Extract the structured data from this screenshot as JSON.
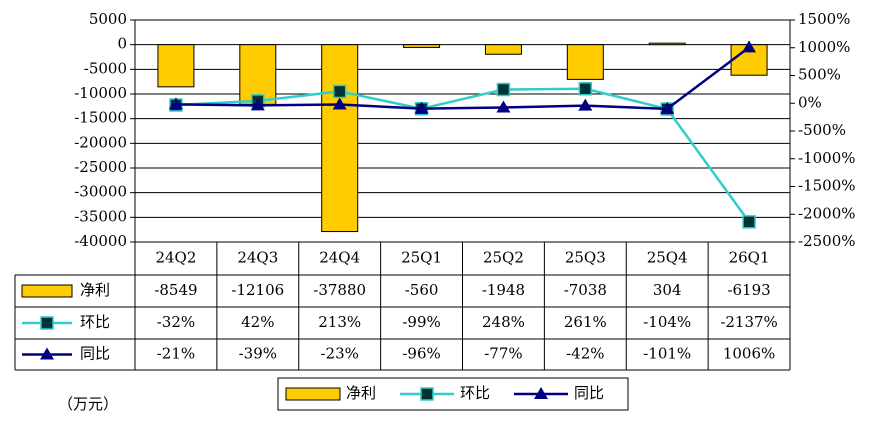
{
  "chart_data": {
    "type": "bar",
    "categories": [
      "24Q2",
      "24Q3",
      "24Q4",
      "25Q1",
      "25Q2",
      "25Q3",
      "25Q4",
      "26Q1"
    ],
    "series": [
      {
        "name": "净利",
        "type": "bar",
        "color": "#ffcc00",
        "values": [
          -8549,
          -12106,
          -37880,
          -560,
          -1948,
          -7038,
          304,
          -6193
        ]
      },
      {
        "name": "环比",
        "type": "line",
        "color": "#33cccc",
        "marker": "square",
        "axis": "y2",
        "values": [
          -32,
          42,
          213,
          -99,
          248,
          261,
          -104,
          -2137
        ],
        "value_labels": [
          "-32%",
          "42%",
          "213%",
          "-99%",
          "248%",
          "261%",
          "-104%",
          "-2137%"
        ]
      },
      {
        "name": "同比",
        "type": "line",
        "color": "#000080",
        "marker": "triangle",
        "axis": "y2",
        "values": [
          -21,
          -39,
          -23,
          -96,
          -77,
          -42,
          -101,
          1006
        ],
        "value_labels": [
          "-21%",
          "-39%",
          "-23%",
          "-96%",
          "-77%",
          "-42%",
          "-101%",
          "1006%"
        ]
      }
    ],
    "ylim": [
      -40000,
      5000
    ],
    "yticks": [
      5000,
      0,
      -5000,
      -10000,
      -15000,
      -20000,
      -25000,
      -30000,
      -35000,
      -40000
    ],
    "y2lim": [
      -2500,
      1500
    ],
    "y2ticks": [
      {
        "value": 1500,
        "label": "1500%"
      },
      {
        "value": 1000,
        "label": "1000%"
      },
      {
        "value": 500,
        "label": "500%"
      },
      {
        "value": 0,
        "label": "0%"
      },
      {
        "value": -500,
        "label": "-500%"
      },
      {
        "value": -1000,
        "label": "-1000%"
      },
      {
        "value": -1500,
        "label": "-1500%"
      },
      {
        "value": -2000,
        "label": "-2000%"
      },
      {
        "value": -2500,
        "label": "-2500%"
      }
    ],
    "grid": true,
    "unit_note": "（万元）"
  }
}
